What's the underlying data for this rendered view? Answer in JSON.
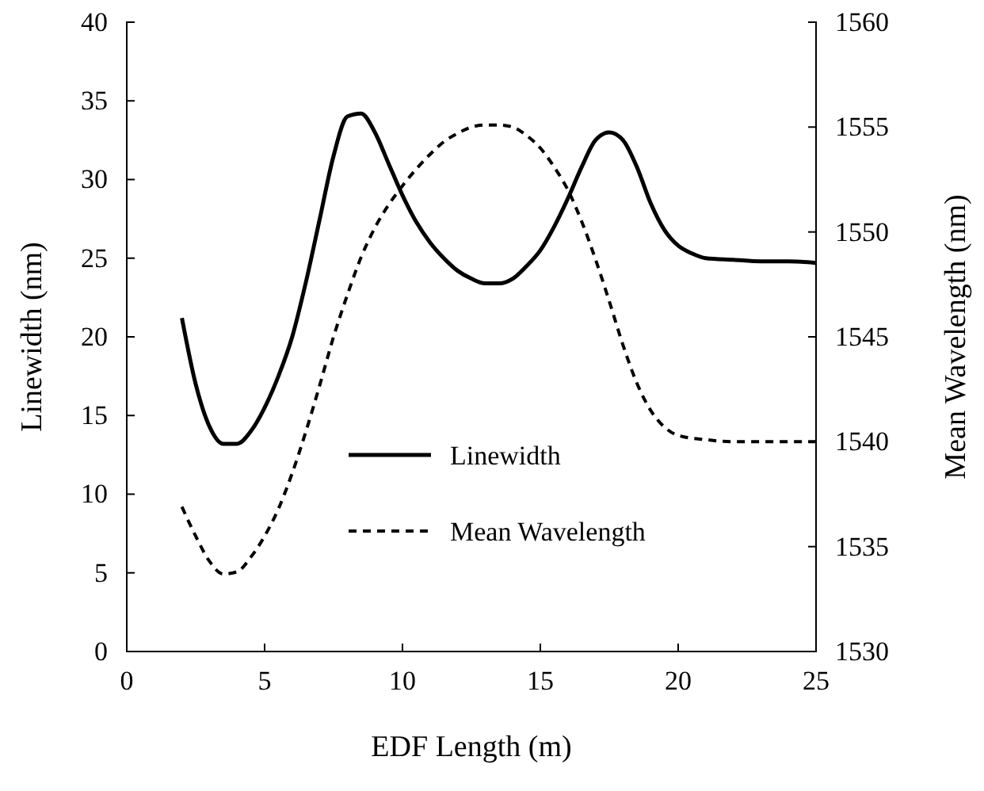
{
  "chart_data": {
    "type": "line",
    "xlabel": "EDF Length (m)",
    "ylabel": "Linewidth (nm)",
    "y2label": "Mean Wavelength (nm)",
    "xlim": [
      0,
      25
    ],
    "xticks": [
      0,
      5,
      10,
      15,
      20,
      25
    ],
    "ylim": [
      0,
      40
    ],
    "yticks": [
      0,
      5,
      10,
      15,
      20,
      25,
      30,
      35,
      40
    ],
    "y2lim": [
      1530,
      1560
    ],
    "y2ticks": [
      1530,
      1535,
      1540,
      1545,
      1550,
      1555,
      1560
    ],
    "grid": false,
    "legend": "center",
    "marker": "none",
    "series": [
      {
        "name": "Linewidth",
        "color": "#000000",
        "line_style": "solid",
        "x": [
          2,
          2.5,
          3,
          3.5,
          4,
          4.5,
          5,
          5.5,
          6,
          6.5,
          7,
          7.5,
          8,
          8.5,
          9,
          9.5,
          10,
          10.5,
          11,
          11.5,
          12,
          12.5,
          13,
          13.5,
          14,
          14.5,
          15,
          15.5,
          16,
          16.5,
          17,
          17.5,
          18,
          18.5,
          19,
          19.5,
          20,
          20.5,
          21,
          22,
          23,
          24,
          25
        ],
        "values": [
          21.2,
          17,
          14.3,
          13.2,
          13.2,
          14,
          15.5,
          17.5,
          20,
          23.5,
          27.5,
          31.5,
          34,
          34.2,
          33,
          31,
          29,
          27.3,
          26,
          25,
          24.2,
          23.7,
          23.4,
          23.4,
          23.7,
          24.5,
          25.5,
          27,
          28.8,
          30.8,
          32.5,
          33,
          32.5,
          30.8,
          28.5,
          26.8,
          25.8,
          25.3,
          25,
          24.9,
          24.8,
          24.8,
          24.7
        ]
      },
      {
        "name": "Mean Wavelength",
        "color": "#000000",
        "line_style": "dashed",
        "axis": "y2",
        "x": [
          2,
          2.5,
          3,
          3.5,
          4,
          4.5,
          5,
          5.5,
          6,
          6.5,
          7,
          7.5,
          8,
          8.5,
          9,
          9.5,
          10,
          10.5,
          11,
          11.5,
          12,
          12.5,
          13,
          13.5,
          14,
          14.5,
          15,
          15.5,
          16,
          16.5,
          17,
          17.5,
          18,
          18.5,
          19,
          19.5,
          20,
          21,
          22,
          25
        ],
        "values": [
          1536.9,
          1535.5,
          1534.3,
          1533.7,
          1533.8,
          1534.5,
          1535.5,
          1536.8,
          1538.5,
          1540.5,
          1542.7,
          1545,
          1547,
          1548.8,
          1550.2,
          1551.3,
          1552.2,
          1553,
          1553.7,
          1554.3,
          1554.7,
          1555,
          1555.1,
          1555.1,
          1555,
          1554.6,
          1554,
          1553.1,
          1552,
          1550.5,
          1548.7,
          1546.7,
          1544.6,
          1542.8,
          1541.5,
          1540.7,
          1540.3,
          1540.1,
          1540,
          1540
        ]
      }
    ]
  }
}
